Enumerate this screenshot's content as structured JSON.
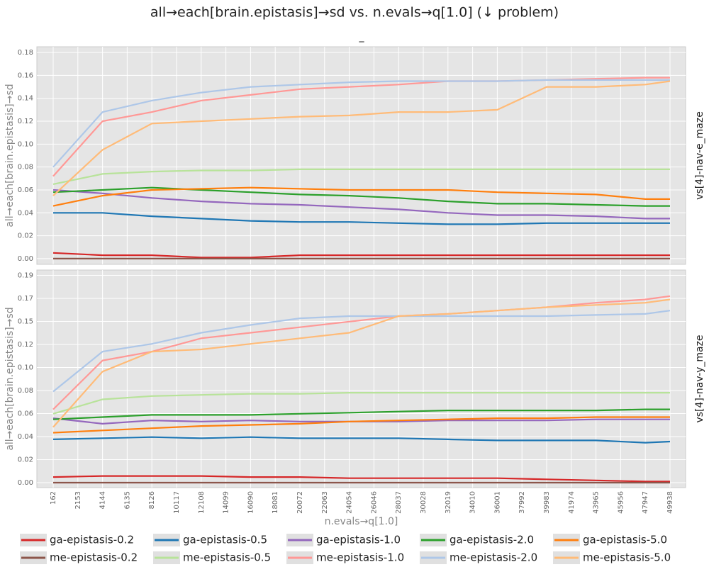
{
  "title": "all→each[brain.epistasis]→sd vs. n.evals→q[1.0] (↓ problem)",
  "subtitle": "_",
  "chart_data": [
    {
      "type": "line",
      "facet_label": "vs[4]-nav-e_maze",
      "ylabel": "all→each[brain.epistasis]→sd",
      "grid": true,
      "xlim": [
        -1154,
        51197
      ],
      "ylim": [
        -0.005,
        0.185
      ],
      "yticks": [
        {
          "value": 0,
          "label": "0.00"
        },
        {
          "value": 0.02,
          "label": "0.02"
        },
        {
          "value": 0.04,
          "label": "0.04"
        },
        {
          "value": 0.06,
          "label": "0.06"
        },
        {
          "value": 0.08,
          "label": "0.08"
        },
        {
          "value": 0.1,
          "label": "0.10"
        },
        {
          "value": 0.12,
          "label": "0.12"
        },
        {
          "value": 0.14,
          "label": "0.14"
        },
        {
          "value": 0.16,
          "label": "0.16"
        },
        {
          "value": 0.18,
          "label": "0.18"
        }
      ],
      "x": [
        162,
        4144,
        8126,
        12108,
        16090,
        20072,
        24054,
        28037,
        32019,
        36001,
        39983,
        43965,
        47947,
        49938
      ],
      "series": [
        {
          "name": "ga-epistasis-0.2",
          "color": "#d62728",
          "values": [
            0.005,
            0.003,
            0.003,
            0.001,
            0.001,
            0.003,
            0.003,
            0.003,
            0.003,
            0.003,
            0.003,
            0.003,
            0.003,
            0.003
          ]
        },
        {
          "name": "ga-epistasis-0.5",
          "color": "#1f77b4",
          "values": [
            0.04,
            0.04,
            0.037,
            0.035,
            0.033,
            0.032,
            0.032,
            0.031,
            0.03,
            0.03,
            0.031,
            0.031,
            0.031,
            0.031
          ]
        },
        {
          "name": "ga-epistasis-1.0",
          "color": "#9467bd",
          "values": [
            0.06,
            0.057,
            0.053,
            0.05,
            0.048,
            0.047,
            0.045,
            0.043,
            0.04,
            0.038,
            0.038,
            0.037,
            0.035,
            0.035
          ]
        },
        {
          "name": "ga-epistasis-2.0",
          "color": "#2ca02c",
          "values": [
            0.058,
            0.06,
            0.062,
            0.06,
            0.058,
            0.056,
            0.055,
            0.053,
            0.05,
            0.048,
            0.048,
            0.047,
            0.046,
            0.046
          ]
        },
        {
          "name": "ga-epistasis-5.0",
          "color": "#ff7f0e",
          "values": [
            0.046,
            0.055,
            0.06,
            0.061,
            0.062,
            0.061,
            0.06,
            0.06,
            0.06,
            0.058,
            0.057,
            0.056,
            0.052,
            0.052
          ]
        },
        {
          "name": "me-epistasis-0.2",
          "color": "#8c564b",
          "values": [
            0,
            0,
            0,
            0,
            0,
            0,
            0,
            0,
            0,
            0,
            0,
            0,
            0,
            0
          ]
        },
        {
          "name": "me-epistasis-0.5",
          "color": "#b8e39a",
          "values": [
            0.065,
            0.074,
            0.076,
            0.077,
            0.077,
            0.078,
            0.078,
            0.078,
            0.078,
            0.078,
            0.078,
            0.078,
            0.078,
            0.078
          ]
        },
        {
          "name": "me-epistasis-1.0",
          "color": "#ff9896",
          "values": [
            0.072,
            0.12,
            0.128,
            0.138,
            0.143,
            0.148,
            0.15,
            0.152,
            0.155,
            0.155,
            0.156,
            0.157,
            0.158,
            0.158
          ]
        },
        {
          "name": "me-epistasis-2.0",
          "color": "#aec7e8",
          "values": [
            0.08,
            0.128,
            0.138,
            0.145,
            0.15,
            0.152,
            0.154,
            0.155,
            0.155,
            0.155,
            0.156,
            0.156,
            0.156,
            0.156
          ]
        },
        {
          "name": "me-epistasis-5.0",
          "color": "#ffbb78",
          "values": [
            0.055,
            0.095,
            0.118,
            0.12,
            0.122,
            0.124,
            0.125,
            0.128,
            0.128,
            0.13,
            0.15,
            0.15,
            0.152,
            0.155
          ]
        }
      ]
    },
    {
      "type": "line",
      "facet_label": "vs[4]-nav-y_maze",
      "ylabel": "all→each[brain.epistasis]→sd",
      "xlabel": "n.evals→q[1.0]",
      "grid": true,
      "xlim": [
        -1154,
        51197
      ],
      "ylim": [
        -0.0045,
        0.1915
      ],
      "xticks": [
        162,
        2153,
        4144,
        6135,
        8126,
        10117,
        12108,
        14099,
        16090,
        18081,
        20072,
        22063,
        24054,
        26046,
        28037,
        30028,
        32019,
        34010,
        36001,
        37992,
        39983,
        41974,
        43965,
        45956,
        47947,
        49938
      ],
      "yticks": [
        {
          "value": 0,
          "label": "0.00"
        },
        {
          "value": 0.02075,
          "label": "0.02"
        },
        {
          "value": 0.0415,
          "label": "0.04"
        },
        {
          "value": 0.06225,
          "label": "0.06"
        },
        {
          "value": 0.083,
          "label": "0.08"
        },
        {
          "value": 0.10375,
          "label": "0.10"
        },
        {
          "value": 0.1245,
          "label": "0.12"
        },
        {
          "value": 0.14525,
          "label": "0.15"
        },
        {
          "value": 0.166,
          "label": "0.17"
        },
        {
          "value": 0.18675,
          "label": "0.19"
        }
      ],
      "x": [
        162,
        4144,
        8126,
        12108,
        16090,
        20072,
        24054,
        28037,
        32019,
        36001,
        39983,
        43965,
        47947,
        49938
      ],
      "series": [
        {
          "name": "ga-epistasis-0.2",
          "color": "#d62728",
          "values": [
            0.005,
            0.006,
            0.006,
            0.006,
            0.005,
            0.005,
            0.004,
            0.004,
            0.004,
            0.004,
            0.003,
            0.002,
            0.001,
            0.001
          ]
        },
        {
          "name": "ga-epistasis-0.5",
          "color": "#1f77b4",
          "values": [
            0.039,
            0.04,
            0.041,
            0.04,
            0.041,
            0.04,
            0.04,
            0.04,
            0.039,
            0.038,
            0.038,
            0.038,
            0.036,
            0.037
          ]
        },
        {
          "name": "ga-epistasis-1.0",
          "color": "#9467bd",
          "values": [
            0.058,
            0.053,
            0.056,
            0.055,
            0.056,
            0.055,
            0.055,
            0.055,
            0.056,
            0.056,
            0.056,
            0.057,
            0.057,
            0.057
          ]
        },
        {
          "name": "ga-epistasis-2.0",
          "color": "#2ca02c",
          "values": [
            0.057,
            0.059,
            0.061,
            0.061,
            0.061,
            0.062,
            0.063,
            0.064,
            0.065,
            0.065,
            0.065,
            0.065,
            0.066,
            0.066
          ]
        },
        {
          "name": "ga-epistasis-5.0",
          "color": "#ff7f0e",
          "values": [
            0.045,
            0.047,
            0.049,
            0.051,
            0.052,
            0.053,
            0.055,
            0.056,
            0.057,
            0.058,
            0.058,
            0.059,
            0.059,
            0.059
          ]
        },
        {
          "name": "me-epistasis-0.2",
          "color": "#8c564b",
          "values": [
            0,
            0,
            0,
            0,
            0,
            0,
            0,
            0,
            0,
            0,
            0,
            0,
            0,
            0
          ]
        },
        {
          "name": "me-epistasis-0.5",
          "color": "#b8e39a",
          "values": [
            0.062,
            0.075,
            0.078,
            0.079,
            0.08,
            0.08,
            0.081,
            0.081,
            0.081,
            0.081,
            0.081,
            0.081,
            0.081,
            0.081
          ]
        },
        {
          "name": "me-epistasis-1.0",
          "color": "#ff9896",
          "values": [
            0.066,
            0.11,
            0.118,
            0.13,
            0.135,
            0.14,
            0.145,
            0.15,
            0.152,
            0.155,
            0.158,
            0.162,
            0.165,
            0.168
          ]
        },
        {
          "name": "me-epistasis-2.0",
          "color": "#aec7e8",
          "values": [
            0.082,
            0.118,
            0.125,
            0.135,
            0.142,
            0.148,
            0.15,
            0.15,
            0.15,
            0.15,
            0.15,
            0.151,
            0.152,
            0.155
          ]
        },
        {
          "name": "me-epistasis-5.0",
          "color": "#ffbb78",
          "values": [
            0.05,
            0.1,
            0.118,
            0.12,
            0.125,
            0.13,
            0.135,
            0.15,
            0.152,
            0.155,
            0.158,
            0.16,
            0.162,
            0.165
          ]
        }
      ]
    }
  ]
}
